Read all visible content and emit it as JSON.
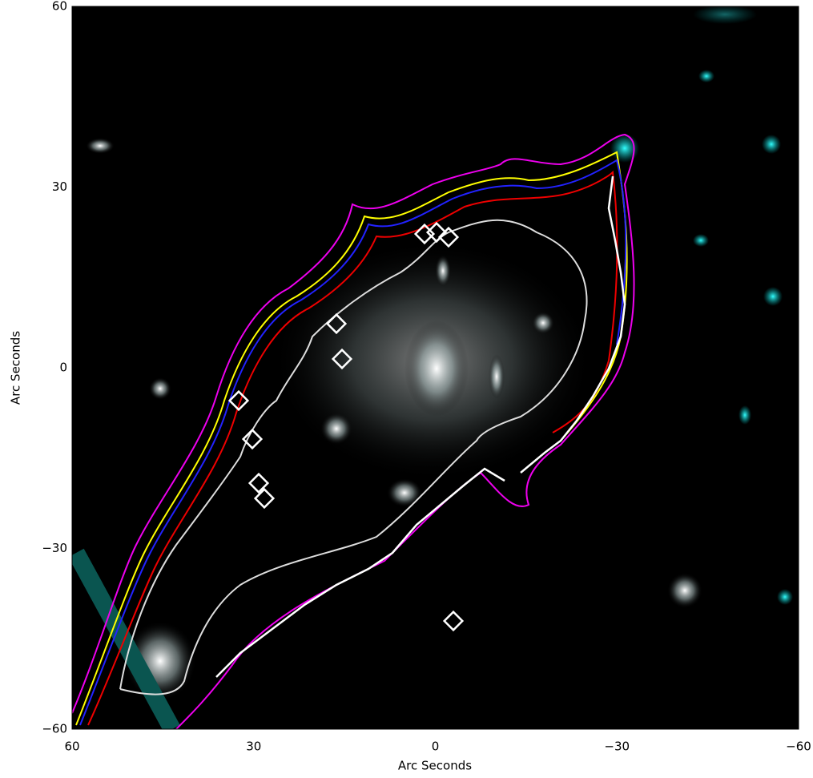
{
  "chart_data": {
    "type": "image",
    "xlabel": "Arc Seconds",
    "ylabel": "Arc Seconds",
    "xlim": [
      60,
      -60
    ],
    "ylim": [
      -60,
      60
    ],
    "xticks": [
      60,
      30,
      0,
      {
        "value": -30,
        "label": "−30"
      },
      {
        "value": -60,
        "label": "−60"
      }
    ],
    "yticks": [
      {
        "value": -60,
        "label": "−60"
      },
      {
        "value": -30,
        "label": "−30"
      },
      0,
      30,
      60
    ]
  }
}
